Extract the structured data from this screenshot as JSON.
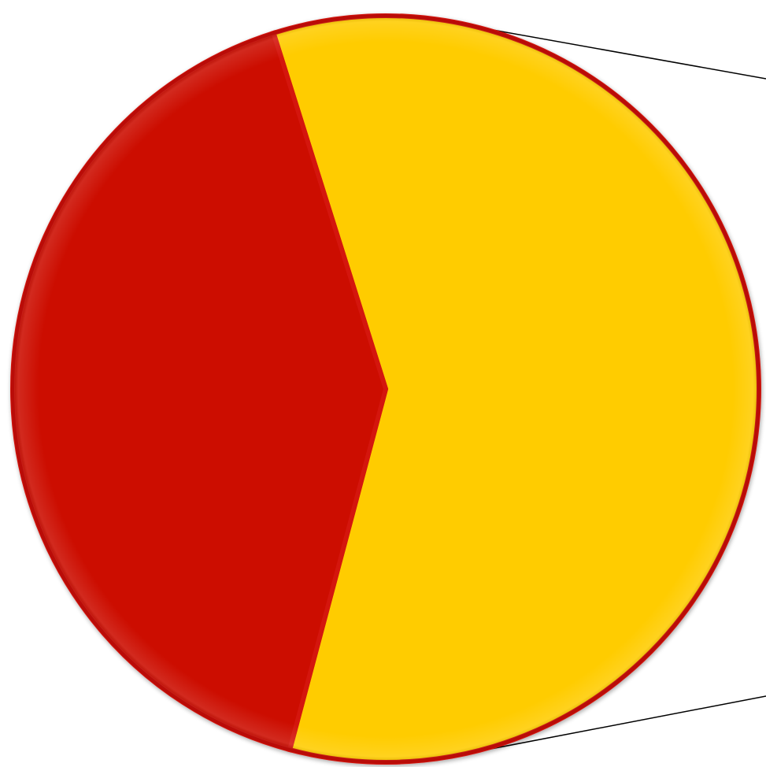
{
  "chart_data": {
    "type": "pie",
    "start_angle_deg": -107.5,
    "direction": "clockwise",
    "slices": [
      {
        "value": 59.0,
        "color": "#FFCC00"
      },
      {
        "value": 41.0,
        "color": "#CC0800"
      }
    ],
    "slice_border_color": "#D41410",
    "outline_color": "#B90C08",
    "callout": {
      "attached_to_slice": 0,
      "color": "#000000"
    }
  }
}
